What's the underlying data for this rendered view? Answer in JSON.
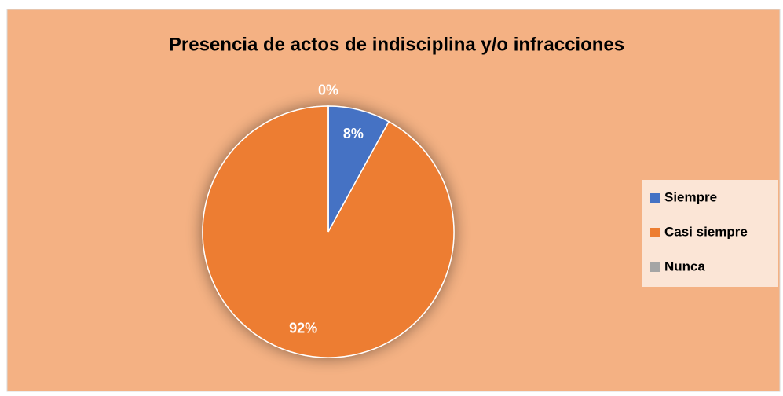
{
  "chart_data": {
    "type": "pie",
    "title": "Presencia de actos de indisciplina y/o infracciones",
    "categories": [
      "Siempre",
      "Casi siempre",
      "Nunca"
    ],
    "values": [
      8,
      92,
      0
    ],
    "value_labels": [
      "8%",
      "92%",
      "0%"
    ],
    "colors": [
      "#4472c4",
      "#ed7d31",
      "#a5a5a5"
    ],
    "legend": "right"
  }
}
